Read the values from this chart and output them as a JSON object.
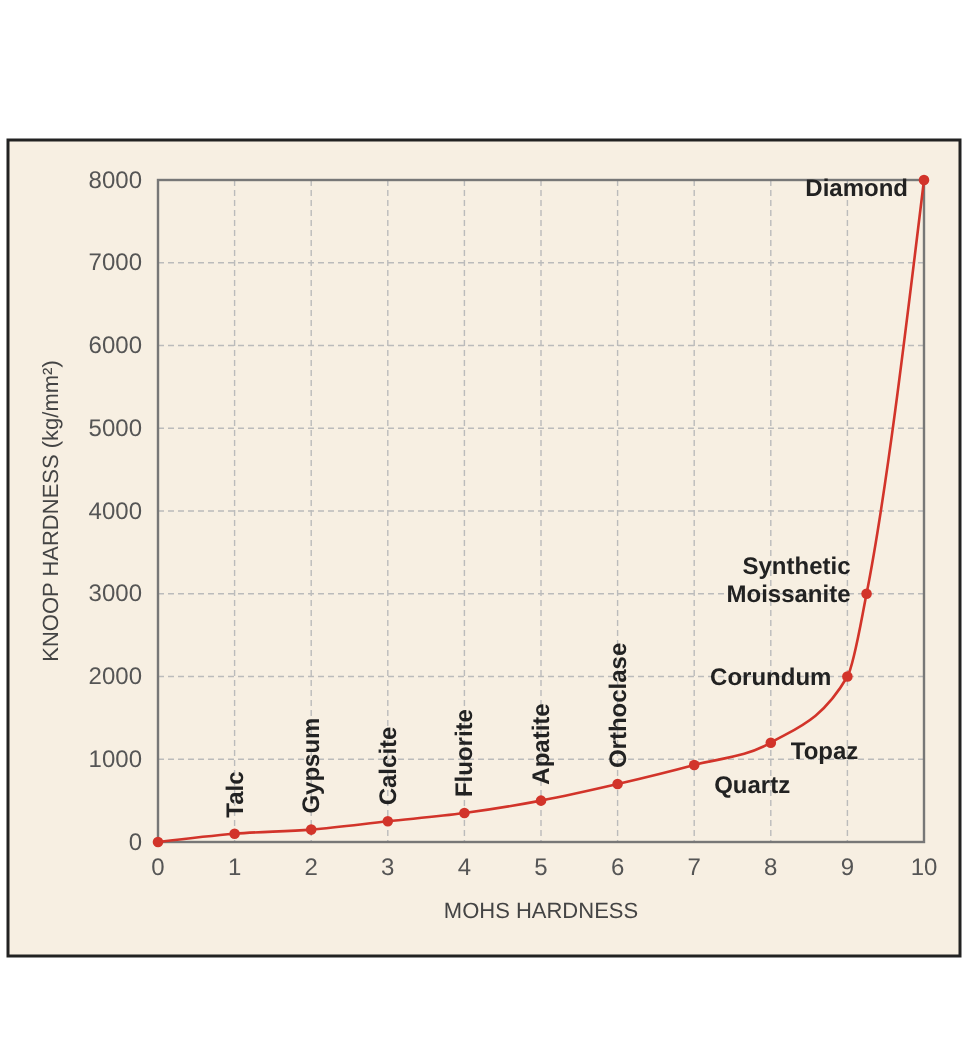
{
  "chart_data": {
    "type": "line",
    "xlabel": "MOHS HARDNESS",
    "ylabel": "KNOOP HARDNESS (kg/mm²)",
    "x": [
      0,
      1,
      2,
      3,
      4,
      5,
      6,
      7,
      8,
      9,
      9.25,
      10
    ],
    "series": [
      {
        "color": "#d2342a",
        "values": [
          0,
          100,
          150,
          250,
          350,
          500,
          700,
          930,
          1200,
          2000,
          3000,
          8000
        ]
      }
    ],
    "xlim": [
      0,
      10
    ],
    "xticks": [
      0,
      1,
      2,
      3,
      4,
      5,
      6,
      7,
      8,
      9,
      10
    ],
    "ylim": [
      0,
      8000
    ],
    "yticks": [
      0,
      1000,
      2000,
      3000,
      4000,
      5000,
      6000,
      7000,
      8000
    ],
    "grid": true,
    "marker": "circle",
    "line_style": "solid",
    "annotations": [
      {
        "text": "Talc",
        "x": 1,
        "y": 100
      },
      {
        "text": "Gypsum",
        "x": 2,
        "y": 150
      },
      {
        "text": "Calcite",
        "x": 3,
        "y": 250
      },
      {
        "text": "Fluorite",
        "x": 4,
        "y": 350
      },
      {
        "text": "Apatite",
        "x": 5,
        "y": 500
      },
      {
        "text": "Orthoclase",
        "x": 6,
        "y": 700
      },
      {
        "text": "Quartz",
        "x": 7,
        "y": 930
      },
      {
        "text": "Topaz",
        "x": 8,
        "y": 1200
      },
      {
        "text": "Corundum",
        "x": 9,
        "y": 2000
      },
      {
        "text": "Synthetic Moissanite",
        "x": 9.25,
        "y": 3000
      },
      {
        "text": "Diamond",
        "x": 10,
        "y": 8000
      }
    ]
  }
}
